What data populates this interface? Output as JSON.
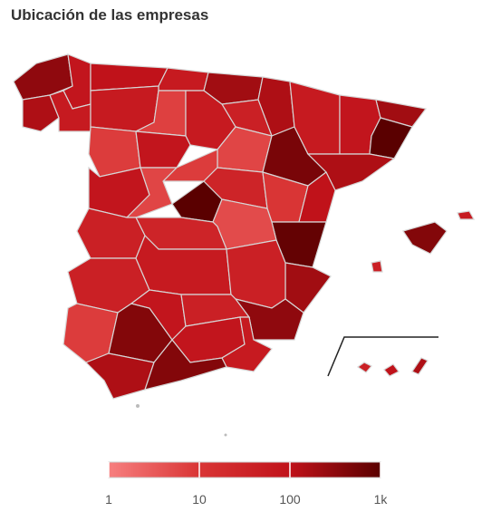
{
  "chart_data": {
    "type": "choropleth",
    "title": "Ubicación de las empresas",
    "values": [
      300,
      80,
      150,
      60,
      100,
      60,
      200,
      150,
      40,
      60,
      7,
      60,
      8,
      80,
      6,
      80,
      8,
      6,
      2000,
      30,
      500,
      60,
      10,
      80,
      200,
      2000,
      150,
      100,
      800,
      200,
      5,
      30,
      40,
      40,
      60,
      40,
      300,
      8,
      400,
      80,
      40,
      80,
      60,
      150,
      400,
      400,
      60,
      40,
      40,
      100,
      150
    ],
    "log_scale": true,
    "clim": [
      1,
      1000
    ],
    "colors": [
      "#f77f7f",
      "#d93535",
      "#c0121a",
      "#5a0000"
    ],
    "ticks": [
      1,
      10,
      100,
      {
        "value": 1000,
        "label": "1k"
      }
    ]
  }
}
